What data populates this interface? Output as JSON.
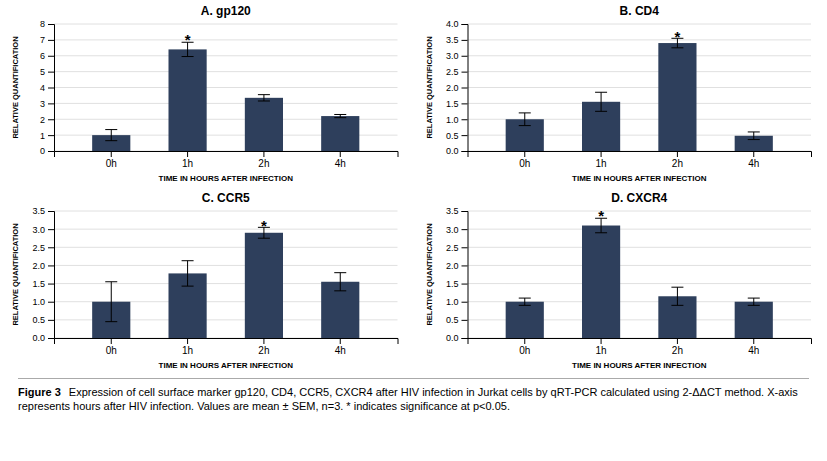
{
  "chart_data": [
    {
      "type": "bar",
      "title": "A. gp120",
      "categories": [
        "0h",
        "1h",
        "2h",
        "4h"
      ],
      "values": [
        1.0,
        6.4,
        3.35,
        2.2
      ],
      "errors": [
        0.35,
        0.45,
        0.2,
        0.1
      ],
      "color": "#2e3f5c",
      "xlabel": "TIME IN HOURS AFTER INFECTION",
      "ylabel": "RELATIVE QUANTIFICATION",
      "ylim": [
        0,
        8
      ],
      "yticks": [
        0,
        1,
        2,
        3,
        4,
        5,
        6,
        7,
        8
      ],
      "grid": true,
      "annotations": [
        {
          "text": "*",
          "x": "1h",
          "y": 7.15
        }
      ]
    },
    {
      "type": "bar",
      "title": "B. CD4",
      "categories": [
        "0h",
        "1h",
        "2h",
        "4h"
      ],
      "values": [
        1.0,
        1.55,
        3.4,
        0.48
      ],
      "errors": [
        0.2,
        0.3,
        0.15,
        0.12
      ],
      "color": "#2e3f5c",
      "xlabel": "TIME IN HOURS AFTER INFECTION",
      "ylabel": "RELATIVE QUANTIFICATION",
      "ylim": [
        0,
        4
      ],
      "yticks": [
        {
          "value": 0,
          "label": "0.0"
        },
        0.5,
        {
          "value": 1.0,
          "label": "1.0"
        },
        1.5,
        {
          "value": 2.0,
          "label": "2.0"
        },
        2.5,
        {
          "value": 3.0,
          "label": "3.0"
        },
        3.5,
        {
          "value": 4.0,
          "label": "4.0"
        }
      ],
      "grid": true,
      "annotations": [
        {
          "text": "*",
          "x": "2h",
          "y": 3.7
        }
      ]
    },
    {
      "type": "bar",
      "title": "C. CCR5",
      "categories": [
        "0h",
        "1h",
        "2h",
        "4h"
      ],
      "values": [
        1.0,
        1.78,
        2.9,
        1.55
      ],
      "errors": [
        0.55,
        0.35,
        0.15,
        0.25
      ],
      "color": "#2e3f5c",
      "xlabel": "TIME IN HOURS AFTER INFECTION",
      "ylabel": "RELATIVE QUANTIFICATION",
      "ylim": [
        0,
        3.5
      ],
      "yticks": [
        {
          "value": 0,
          "label": "0.0"
        },
        0.5,
        {
          "value": 1.0,
          "label": "1.0"
        },
        1.5,
        {
          "value": 2.0,
          "label": "2.0"
        },
        2.5,
        {
          "value": 3.0,
          "label": "3.0"
        },
        3.5
      ],
      "grid": true,
      "annotations": [
        {
          "text": "*",
          "x": "2h",
          "y": 3.17
        }
      ]
    },
    {
      "type": "bar",
      "title": "D. CXCR4",
      "categories": [
        "0h",
        "1h",
        "2h",
        "4h"
      ],
      "values": [
        1.0,
        3.1,
        1.15,
        1.0
      ],
      "errors": [
        0.1,
        0.2,
        0.25,
        0.1
      ],
      "color": "#2e3f5c",
      "xlabel": "TIME IN HOURS AFTER INFECTION",
      "ylabel": "RELATIVE QUANTIFICATION",
      "ylim": [
        0,
        3.5
      ],
      "yticks": [
        {
          "value": 0,
          "label": "0.0"
        },
        0.5,
        {
          "value": 1.0,
          "label": "1.0"
        },
        1.5,
        {
          "value": 2.0,
          "label": "2.0"
        },
        2.5,
        {
          "value": 3.0,
          "label": "3.0"
        },
        3.5
      ],
      "grid": true,
      "annotations": [
        {
          "text": "*",
          "x": "1h",
          "y": 3.45
        }
      ]
    }
  ],
  "caption_title": "Figure 3",
  "caption": "Expression of cell surface marker gp120, CD4, CCR5, CXCR4 after HIV infection in Jurkat cells by qRT-PCR calculated using 2-ΔΔCT method. X-axis represents hours after HIV infection. Values are mean ± SEM, n=3. * indicates significance at p<0.05."
}
